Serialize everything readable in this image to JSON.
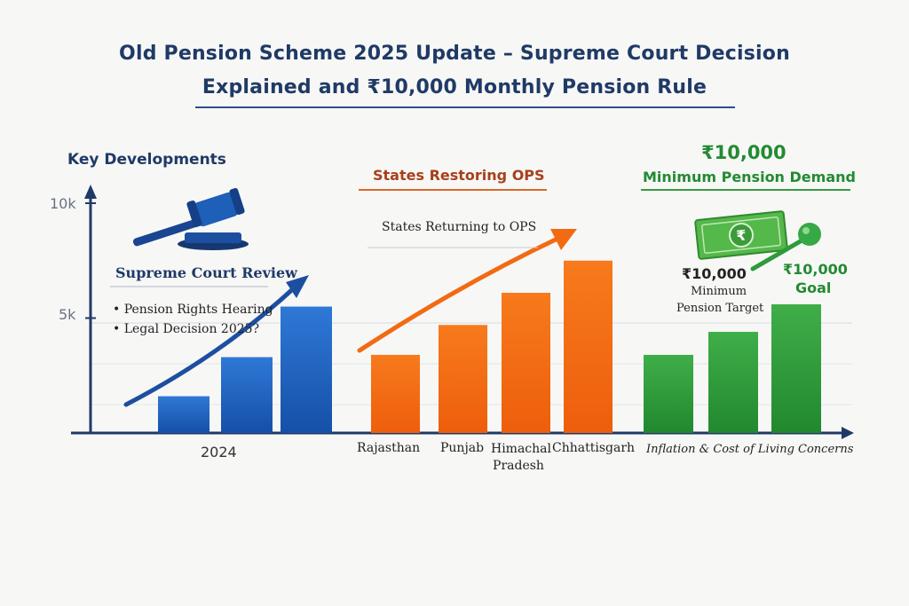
{
  "title_lines": [
    "Old Pension Scheme 2025 Update – Supreme Court Decision",
    "Explained and ₹10,000 Monthly Pension Rule"
  ],
  "colors": {
    "title": "#1f3a66",
    "blue": "#1e5fb8",
    "orange": "#f26a12",
    "green": "#2e9a3c",
    "axis": "#1f3a66",
    "grid": "#cfd3da"
  },
  "icons": [
    "gavel-icon",
    "rupee-banknote-icon",
    "pushpin-icon",
    "trend-arrow-icon"
  ],
  "panels": {
    "blue": {
      "heading": "Key Developments",
      "subheading": "Supreme Court Review",
      "bullets": [
        "• Pension Rights Hearing",
        "• Legal Decision 2025?"
      ],
      "category_label": "2024"
    },
    "orange": {
      "heading": "States Restoring OPS",
      "subheading": "States Returning to OPS"
    },
    "green": {
      "amount": "₹10,000",
      "heading": "Minimum Pension Demand",
      "target_amount": "₹10,000",
      "target_label_1": "Minimum",
      "target_label_2": "Pension Target",
      "goal_amount": "₹10,000",
      "goal_label": "Goal",
      "caption": "Inflation & Cost of Living Concerns"
    }
  },
  "chart_data": {
    "type": "bar",
    "title": "Old Pension Scheme 2025 Update – Supreme Court Decision Explained and ₹10,000 Monthly Pension Rule",
    "ylim": [
      0,
      10000
    ],
    "yticks": [
      {
        "value": 5000,
        "label": "5k"
      },
      {
        "value": 10000,
        "label": "10k"
      }
    ],
    "grid": true,
    "series": [
      {
        "name": "Key Developments",
        "color": "#1e5fb8",
        "categories": [
          "2024"
        ],
        "values": [
          1600,
          3300,
          5500
        ]
      },
      {
        "name": "States Restoring OPS",
        "color": "#f26a12",
        "categories": [
          "Rajasthan",
          "Punjab",
          "Himachal Pradesh",
          "Chhattisgarh"
        ],
        "values": [
          3400,
          4700,
          6100,
          7500
        ]
      },
      {
        "name": "Minimum Pension Demand",
        "color": "#2e9a3c",
        "categories": [],
        "values": [
          3400,
          4400,
          5600
        ]
      }
    ]
  }
}
